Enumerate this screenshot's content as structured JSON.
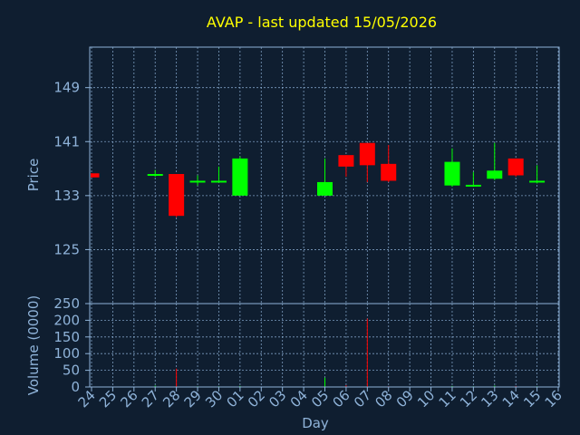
{
  "chart_data": {
    "type": "candlestick",
    "title": "AVAP - last updated 15/05/2026",
    "xlabel": "Day",
    "price_panel": {
      "ylabel": "Price",
      "yticks": [
        125,
        133,
        141,
        149
      ],
      "ylim": [
        117,
        155
      ]
    },
    "volume_panel": {
      "ylabel": "Volume (0000)",
      "yticks": [
        0,
        50,
        100,
        150,
        200,
        250
      ],
      "ylim": [
        0,
        250
      ]
    },
    "days": [
      "24",
      "25",
      "26",
      "27",
      "28",
      "29",
      "30",
      "01",
      "02",
      "03",
      "04",
      "05",
      "06",
      "07",
      "08",
      "09",
      "10",
      "11",
      "12",
      "13",
      "14",
      "15",
      "16"
    ],
    "colors": {
      "up": "#00ff00",
      "down": "#ff0000",
      "background": "#0f1e30",
      "axis": "#8fb3d9",
      "title": "#ffff00"
    },
    "candles": [
      {
        "day": "24",
        "open": 136.3,
        "high": 136.3,
        "low": 135.7,
        "close": 135.7,
        "volume": 0
      },
      {
        "day": "27",
        "open": 136.0,
        "high": 136.8,
        "low": 135.8,
        "close": 136.2,
        "volume": 4
      },
      {
        "day": "28",
        "open": 136.2,
        "high": 136.2,
        "low": 129.8,
        "close": 130.0,
        "volume": 55
      },
      {
        "day": "29",
        "open": 135.0,
        "high": 136.0,
        "low": 134.5,
        "close": 135.2,
        "volume": 2
      },
      {
        "day": "30",
        "open": 135.0,
        "high": 137.3,
        "low": 134.9,
        "close": 135.2,
        "volume": 2
      },
      {
        "day": "01",
        "open": 133.0,
        "high": 138.8,
        "low": 133.0,
        "close": 138.5,
        "volume": 3
      },
      {
        "day": "05",
        "open": 133.0,
        "high": 138.5,
        "low": 133.0,
        "close": 135.0,
        "volume": 28
      },
      {
        "day": "06",
        "open": 139.0,
        "high": 139.0,
        "low": 135.8,
        "close": 137.3,
        "volume": 5
      },
      {
        "day": "07",
        "open": 140.8,
        "high": 140.8,
        "low": 135.0,
        "close": 137.5,
        "volume": 205
      },
      {
        "day": "08",
        "open": 137.7,
        "high": 140.5,
        "low": 135.0,
        "close": 135.2,
        "volume": 2
      },
      {
        "day": "11",
        "open": 134.5,
        "high": 140.0,
        "low": 134.3,
        "close": 138.0,
        "volume": 3
      },
      {
        "day": "12",
        "open": 134.5,
        "high": 136.5,
        "low": 134.3,
        "close": 134.6,
        "volume": 2
      },
      {
        "day": "13",
        "open": 135.5,
        "high": 140.8,
        "low": 135.3,
        "close": 136.7,
        "volume": 4
      },
      {
        "day": "14",
        "open": 138.5,
        "high": 138.5,
        "low": 135.8,
        "close": 136.0,
        "volume": 3
      },
      {
        "day": "15",
        "open": 135.0,
        "high": 137.5,
        "low": 134.8,
        "close": 135.2,
        "volume": 2
      }
    ]
  }
}
